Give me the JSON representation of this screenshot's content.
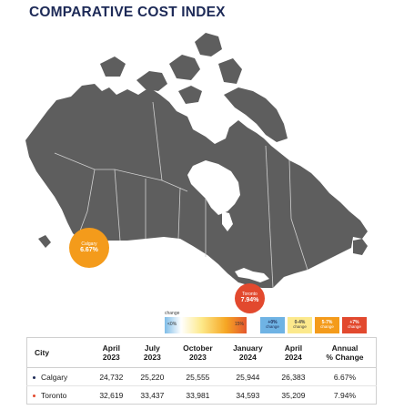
{
  "title": "COMPARATIVE COST INDEX",
  "map": {
    "land_color": "#5e5e5e",
    "border_color": "#d0d0d0",
    "cities": [
      {
        "name": "Calgary",
        "change": "6.67%",
        "color": "#f49b1b"
      },
      {
        "name": "Toronto",
        "change": "7.94%",
        "color": "#e2492e"
      }
    ]
  },
  "legend": {
    "label": "change",
    "gradient_low": "<0%",
    "gradient_high": "15%",
    "categories": [
      {
        "key": "+0%",
        "sub": "change",
        "color": "#6fb3e4",
        "text": "#1d2a57"
      },
      {
        "key": "0-4%",
        "sub": "change",
        "color": "#fce98c",
        "text": "#444444"
      },
      {
        "key": "5-7%",
        "sub": "change",
        "color": "#f49b1b",
        "text": "#ffffff"
      },
      {
        "key": "+7%",
        "sub": "change",
        "color": "#e2492e",
        "text": "#ffffff"
      }
    ]
  },
  "table": {
    "headers": [
      {
        "l1": "City",
        "l2": ""
      },
      {
        "l1": "April",
        "l2": "2023"
      },
      {
        "l1": "July",
        "l2": "2023"
      },
      {
        "l1": "October",
        "l2": "2023"
      },
      {
        "l1": "January",
        "l2": "2024"
      },
      {
        "l1": "April",
        "l2": "2024"
      },
      {
        "l1": "Annual",
        "l2": "% Change"
      }
    ],
    "rows": [
      {
        "city": "Calgary",
        "dot_color": "#1d2a57",
        "values": [
          "24,732",
          "25,220",
          "25,555",
          "25,944",
          "26,383",
          "6.67%"
        ]
      },
      {
        "city": "Toronto",
        "dot_color": "#e2492e",
        "values": [
          "32,619",
          "33,437",
          "33,981",
          "34,593",
          "35,209",
          "7.94%"
        ]
      }
    ]
  }
}
